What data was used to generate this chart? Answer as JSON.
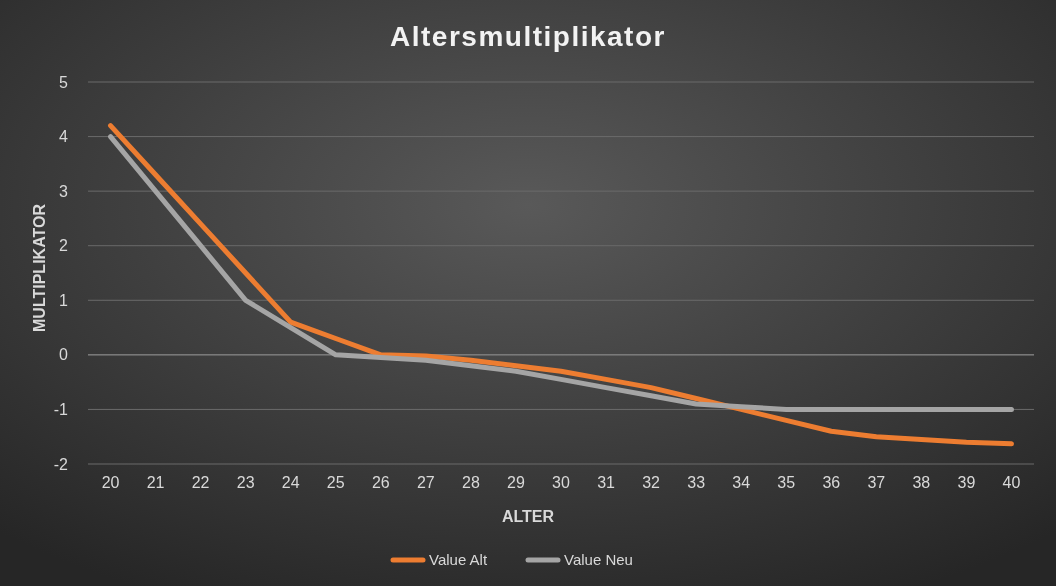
{
  "chart_data": {
    "type": "line",
    "title": "Altersmultiplikator",
    "xlabel": "ALTER",
    "ylabel": "MULTIPLIKATOR",
    "categories": [
      "20",
      "21",
      "22",
      "23",
      "24",
      "25",
      "26",
      "27",
      "28",
      "29",
      "30",
      "31",
      "32",
      "33",
      "34",
      "35",
      "36",
      "37",
      "38",
      "39",
      "40"
    ],
    "series": [
      {
        "name": "Value Alt",
        "color": "#ed7d31",
        "values": [
          4.2,
          3.3,
          2.4,
          1.5,
          0.6,
          0.3,
          0,
          -0.02,
          -0.1,
          -0.2,
          -0.3,
          -0.45,
          -0.6,
          -0.8,
          -1.0,
          -1.2,
          -1.4,
          -1.5,
          -1.55,
          -1.6,
          -1.63
        ]
      },
      {
        "name": "Value Neu",
        "color": "#a5a5a5",
        "values": [
          4,
          3,
          2,
          1,
          0.5,
          0,
          -0.05,
          -0.1,
          -0.2,
          -0.3,
          -0.45,
          -0.6,
          -0.75,
          -0.9,
          -0.95,
          -1,
          -1,
          -1,
          -1,
          -1,
          -1
        ]
      }
    ],
    "ylim": [
      -2,
      5
    ],
    "yticks": [
      -2,
      -1,
      0,
      1,
      2,
      3,
      4,
      5
    ],
    "grid": "y",
    "legend": "bottom",
    "marker": "none",
    "line_style": "solid"
  }
}
